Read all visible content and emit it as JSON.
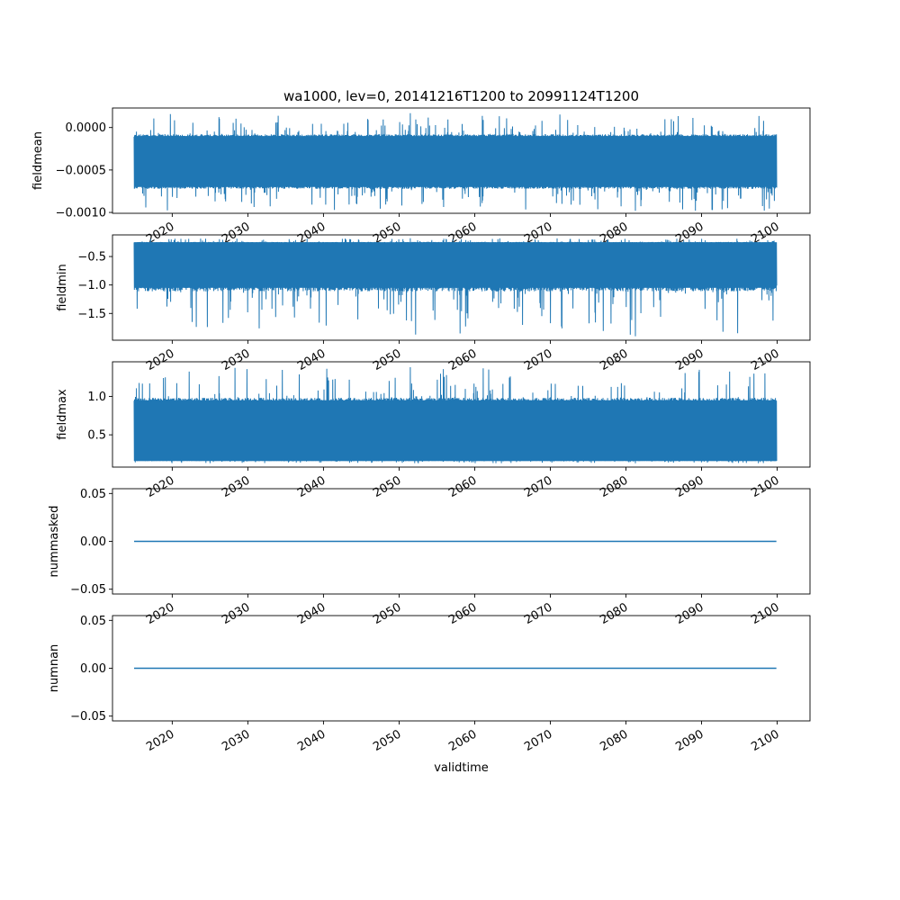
{
  "figure": {
    "title": "wa1000, lev=0, 20141216T1200 to 20991124T1200",
    "xlabel": "validtime"
  },
  "style": {
    "line_color": "#1f77b4",
    "background": "#ffffff",
    "axis_color": "#000000"
  },
  "chart_data": {
    "type": "line",
    "title": "wa1000, lev=0, 20141216T1200 to 20991124T1200",
    "xlabel": "validtime",
    "xlim": [
      "2012-02-07",
      "2104-05-06"
    ],
    "x_start": "2014-12-16T12:00",
    "x_end": "2099-11-24T12:00",
    "x_tick_labels": [
      "2020",
      "2030",
      "2040",
      "2050",
      "2060",
      "2070",
      "2080",
      "2090",
      "2100"
    ],
    "grid": false,
    "subplots": [
      {
        "ylabel": "fieldmean",
        "ylim": [
          -0.00101,
          0.00023
        ],
        "y_ticks": [
          0.0,
          -0.0005,
          -0.001
        ],
        "y_tick_labels": [
          "0.0000",
          "−0.0005",
          "−0.0010"
        ],
        "series_envelope": {
          "typical_low": -0.0007,
          "typical_high": -0.0001,
          "mean": -0.0004,
          "extreme_low": -0.00098,
          "extreme_high": 0.00017
        }
      },
      {
        "ylabel": "fieldmin",
        "ylim": [
          -1.97,
          -0.12
        ],
        "y_ticks": [
          -0.5,
          -1.0,
          -1.5
        ],
        "y_tick_labels": [
          "−0.5",
          "−1.0",
          "−1.5"
        ],
        "series_envelope": {
          "typical_low": -1.05,
          "typical_high": -0.25,
          "mean": -0.6,
          "extreme_low": -1.9,
          "extreme_high": -0.18
        }
      },
      {
        "ylabel": "fieldmax",
        "ylim": [
          0.08,
          1.45
        ],
        "y_ticks": [
          1.0,
          0.5
        ],
        "y_tick_labels": [
          "1.0",
          "0.5"
        ],
        "series_envelope": {
          "typical_low": 0.16,
          "typical_high": 0.95,
          "mean": 0.45,
          "extreme_low": 0.13,
          "extreme_high": 1.38
        }
      },
      {
        "ylabel": "nummasked",
        "ylim": [
          -0.055,
          0.055
        ],
        "y_ticks": [
          0.05,
          0.0,
          -0.05
        ],
        "y_tick_labels": [
          "0.05",
          "0.00",
          "−0.05"
        ],
        "values": "constant",
        "constant_value": 0.0
      },
      {
        "ylabel": "numnan",
        "ylim": [
          -0.055,
          0.055
        ],
        "y_ticks": [
          0.05,
          0.0,
          -0.05
        ],
        "y_tick_labels": [
          "0.05",
          "0.00",
          "−0.05"
        ],
        "values": "constant",
        "constant_value": 0.0
      }
    ]
  }
}
